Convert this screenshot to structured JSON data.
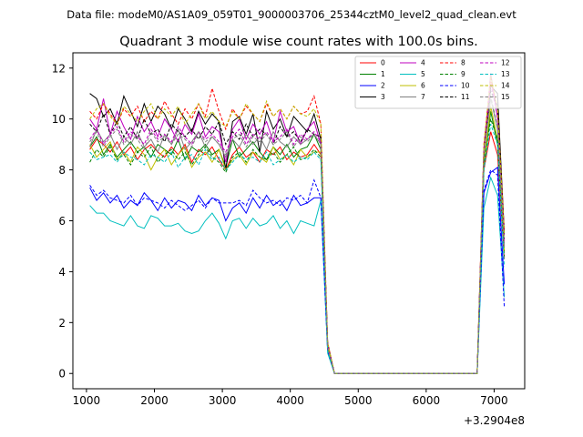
{
  "header": {
    "data_file": "Data file: modeM0/AS1A09_059T01_9000003706_25344cztM0_level2_quad_clean.evt"
  },
  "chart_data": {
    "type": "line",
    "title": "Quadrant 3 module wise count rates with 100.0s bins.",
    "xlabel": "",
    "ylabel": "",
    "x_offset_label": "+3.2904e8",
    "xlim": [
      800,
      7450
    ],
    "ylim": [
      -0.6,
      12.6
    ],
    "xticks": [
      1000,
      2000,
      3000,
      4000,
      5000,
      6000,
      7000
    ],
    "xtick_labels": [
      "1000",
      "2000",
      "3000",
      "4000",
      "5000",
      "6000",
      "7000"
    ],
    "yticks": [
      0,
      2,
      4,
      6,
      8,
      10,
      12
    ],
    "ytick_labels": [
      "0",
      "2",
      "4",
      "6",
      "8",
      "10",
      "12"
    ],
    "grid": false,
    "legend_position": "top-right",
    "x": [
      1050,
      1150,
      1250,
      1350,
      1450,
      1550,
      1650,
      1750,
      1850,
      1950,
      2050,
      2150,
      2250,
      2350,
      2450,
      2550,
      2650,
      2750,
      2850,
      2950,
      3050,
      3150,
      3250,
      3350,
      3450,
      3550,
      3650,
      3750,
      3850,
      3950,
      4050,
      4150,
      4250,
      4350,
      4450,
      4550,
      4650,
      6750,
      6850,
      6950,
      7050,
      7150
    ],
    "series": [
      {
        "name": "0",
        "color": "#ff0000",
        "dash": false,
        "values": [
          8.8,
          9.2,
          9.0,
          8.7,
          9.1,
          8.6,
          8.9,
          8.4,
          8.8,
          9.0,
          8.7,
          8.5,
          8.9,
          8.6,
          9.0,
          8.3,
          8.8,
          8.6,
          8.9,
          8.4,
          8.0,
          8.6,
          8.9,
          8.5,
          8.7,
          8.3,
          8.8,
          8.6,
          8.9,
          8.4,
          8.7,
          8.5,
          8.6,
          9.0,
          8.6,
          1.0,
          0,
          0,
          8.0,
          9.5,
          8.6,
          4.5
        ]
      },
      {
        "name": "1",
        "color": "#008000",
        "dash": false,
        "values": [
          8.9,
          9.3,
          8.6,
          9.0,
          8.5,
          8.8,
          9.1,
          8.7,
          8.9,
          8.5,
          9.0,
          8.8,
          8.6,
          9.2,
          8.4,
          8.9,
          8.7,
          9.0,
          8.6,
          8.8,
          8.1,
          9.2,
          8.5,
          8.8,
          9.1,
          8.7,
          8.4,
          8.9,
          8.6,
          9.0,
          8.5,
          8.8,
          8.9,
          9.4,
          8.8,
          1.1,
          0,
          0,
          8.1,
          10.3,
          9.0,
          5.0
        ]
      },
      {
        "name": "2",
        "color": "#0000ff",
        "dash": false,
        "values": [
          7.3,
          6.8,
          7.1,
          6.7,
          7.0,
          6.5,
          6.8,
          6.6,
          7.1,
          6.8,
          6.4,
          6.9,
          6.5,
          6.8,
          6.7,
          6.4,
          7.0,
          6.6,
          6.9,
          6.8,
          6.0,
          6.5,
          6.7,
          6.3,
          6.9,
          6.5,
          7.0,
          6.6,
          6.8,
          6.4,
          7.0,
          6.6,
          6.7,
          6.9,
          6.9,
          0.9,
          0,
          0,
          7.1,
          7.9,
          8.1,
          3.5
        ]
      },
      {
        "name": "3",
        "color": "#000000",
        "dash": false,
        "values": [
          11.0,
          10.8,
          10.1,
          10.4,
          9.8,
          10.9,
          10.3,
          9.7,
          10.6,
          9.9,
          10.5,
          10.2,
          9.6,
          10.4,
          10.0,
          9.5,
          10.3,
          9.8,
          10.2,
          9.9,
          8.0,
          9.9,
          10.1,
          9.4,
          10.2,
          8.7,
          10.3,
          9.6,
          10.0,
          9.3,
          10.1,
          9.8,
          9.5,
          10.2,
          9.2,
          1.2,
          0,
          0,
          8.5,
          11.3,
          11.0,
          5.5
        ]
      },
      {
        "name": "4",
        "color": "#bf00bf",
        "dash": false,
        "values": [
          10.0,
          9.6,
          10.8,
          9.4,
          10.3,
          9.7,
          9.2,
          10.1,
          9.5,
          9.9,
          9.3,
          10.0,
          9.6,
          9.1,
          9.8,
          9.4,
          10.2,
          9.3,
          9.7,
          9.5,
          8.3,
          9.6,
          10.0,
          9.2,
          9.8,
          9.4,
          9.9,
          9.1,
          10.3,
          9.5,
          9.7,
          9.0,
          9.6,
          9.9,
          9.0,
          1.1,
          0,
          0,
          8.8,
          11.8,
          10.0,
          5.0
        ]
      },
      {
        "name": "5",
        "color": "#00bfbf",
        "dash": false,
        "values": [
          6.6,
          6.3,
          6.3,
          6.0,
          5.9,
          5.8,
          6.2,
          5.8,
          5.7,
          6.2,
          6.1,
          5.8,
          5.8,
          5.9,
          5.6,
          5.5,
          5.6,
          6.0,
          6.3,
          5.9,
          5.3,
          6.0,
          6.1,
          5.7,
          6.1,
          5.8,
          5.9,
          6.2,
          5.7,
          6.0,
          5.5,
          6.0,
          5.9,
          5.8,
          6.8,
          0.8,
          0,
          0,
          6.5,
          7.7,
          7.0,
          3.0
        ]
      },
      {
        "name": "6",
        "color": "#bfbf00",
        "dash": false,
        "values": [
          9.0,
          8.5,
          8.8,
          9.1,
          8.4,
          8.7,
          8.3,
          8.9,
          8.6,
          8.0,
          8.5,
          8.8,
          8.2,
          8.6,
          8.9,
          8.1,
          8.5,
          8.7,
          8.3,
          8.8,
          8.0,
          8.4,
          8.6,
          8.2,
          8.7,
          8.5,
          8.3,
          8.9,
          8.4,
          8.6,
          8.2,
          8.8,
          8.5,
          8.7,
          8.7,
          1.0,
          0,
          0,
          8.2,
          10.5,
          9.2,
          4.8
        ]
      },
      {
        "name": "7",
        "color": "#808080",
        "dash": false,
        "values": [
          8.9,
          9.6,
          9.1,
          9.4,
          8.8,
          9.3,
          9.0,
          9.5,
          8.9,
          9.2,
          8.7,
          9.4,
          9.0,
          9.6,
          8.8,
          9.1,
          9.5,
          8.9,
          9.3,
          9.0,
          8.5,
          9.2,
          8.9,
          9.4,
          9.0,
          9.3,
          8.8,
          9.5,
          9.1,
          8.9,
          9.3,
          9.0,
          9.2,
          9.4,
          9.0,
          1.1,
          0,
          0,
          8.6,
          10.8,
          9.6,
          5.0
        ]
      },
      {
        "name": "8",
        "color": "#ff0000",
        "dash": true,
        "values": [
          10.3,
          10.0,
          10.6,
          10.2,
          9.8,
          10.4,
          10.1,
          10.5,
          9.9,
          10.3,
          10.0,
          10.7,
          10.2,
          9.8,
          10.4,
          10.0,
          10.6,
          10.1,
          11.2,
          10.3,
          9.6,
          10.4,
          10.0,
          10.5,
          10.2,
          9.9,
          10.6,
          10.1,
          10.4,
          10.0,
          10.5,
          10.2,
          10.3,
          10.9,
          9.8,
          1.2,
          0,
          0,
          9.0,
          11.6,
          10.4,
          5.6
        ]
      },
      {
        "name": "9",
        "color": "#008000",
        "dash": true,
        "values": [
          8.3,
          8.8,
          8.5,
          8.9,
          8.4,
          8.6,
          8.2,
          8.7,
          8.5,
          8.9,
          8.3,
          8.6,
          8.8,
          8.4,
          8.7,
          8.2,
          8.6,
          8.9,
          8.5,
          8.3,
          7.9,
          8.5,
          8.7,
          8.3,
          8.8,
          8.5,
          8.4,
          8.7,
          8.3,
          8.6,
          8.9,
          8.4,
          8.5,
          8.8,
          8.5,
          1.0,
          0,
          0,
          8.2,
          10.0,
          9.2,
          4.6
        ]
      },
      {
        "name": "10",
        "color": "#0000ff",
        "dash": true,
        "values": [
          7.4,
          7.0,
          7.2,
          6.9,
          6.8,
          6.7,
          7.0,
          6.6,
          6.9,
          6.8,
          6.7,
          6.5,
          6.8,
          6.6,
          6.4,
          6.6,
          6.8,
          6.5,
          6.9,
          6.7,
          6.7,
          6.7,
          6.8,
          6.6,
          7.2,
          6.9,
          6.7,
          6.8,
          6.6,
          6.9,
          6.8,
          7.0,
          6.7,
          7.6,
          6.9,
          0.9,
          0,
          0,
          7.2,
          8.0,
          7.8,
          2.6
        ]
      },
      {
        "name": "11",
        "color": "#000000",
        "dash": true,
        "values": [
          9.8,
          9.5,
          10.2,
          9.4,
          9.9,
          9.3,
          9.7,
          9.2,
          10.0,
          9.4,
          9.6,
          9.1,
          9.8,
          9.5,
          9.3,
          9.6,
          9.2,
          9.7,
          9.4,
          9.9,
          9.0,
          9.5,
          9.2,
          9.8,
          9.3,
          9.6,
          9.4,
          9.0,
          9.7,
          9.3,
          9.5,
          9.1,
          9.6,
          9.4,
          9.3,
          1.1,
          0,
          0,
          8.7,
          11.1,
          10.5,
          5.3
        ]
      },
      {
        "name": "12",
        "color": "#bf00bf",
        "dash": true,
        "values": [
          9.2,
          9.6,
          9.0,
          9.4,
          9.7,
          9.1,
          9.5,
          9.3,
          9.0,
          9.6,
          9.2,
          9.4,
          9.1,
          9.7,
          9.3,
          9.0,
          9.5,
          9.2,
          9.4,
          9.1,
          8.7,
          9.3,
          9.6,
          9.0,
          9.4,
          9.2,
          9.5,
          9.1,
          9.3,
          9.6,
          9.0,
          9.4,
          9.2,
          9.5,
          9.1,
          1.1,
          0,
          0,
          8.8,
          11.4,
          10.1,
          5.2
        ]
      },
      {
        "name": "13",
        "color": "#00bfbf",
        "dash": true,
        "values": [
          8.7,
          8.4,
          8.5,
          8.6,
          8.3,
          8.7,
          8.5,
          8.4,
          8.2,
          8.6,
          8.5,
          8.3,
          8.7,
          8.1,
          8.5,
          8.6,
          8.2,
          8.8,
          8.4,
          8.5,
          8.0,
          8.3,
          8.6,
          8.4,
          8.5,
          8.3,
          8.7,
          8.2,
          8.4,
          8.6,
          8.3,
          8.5,
          8.4,
          8.7,
          8.4,
          0.9,
          0,
          0,
          8.0,
          9.8,
          9.0,
          4.2
        ]
      },
      {
        "name": "14",
        "color": "#bfbf00",
        "dash": true,
        "values": [
          10.0,
          10.4,
          10.6,
          10.1,
          9.8,
          10.5,
          10.2,
          9.9,
          10.3,
          10.6,
          10.0,
          10.4,
          10.1,
          10.5,
          9.8,
          10.2,
          10.6,
          10.0,
          10.3,
          9.9,
          9.7,
          10.3,
          10.0,
          10.6,
          10.2,
          9.9,
          10.7,
          10.1,
          10.4,
          10.0,
          10.5,
          10.2,
          10.1,
          10.4,
          9.8,
          1.2,
          0,
          0,
          9.0,
          11.7,
          10.4,
          5.4
        ]
      },
      {
        "name": "15",
        "color": "#808080",
        "dash": true,
        "values": [
          9.1,
          9.5,
          8.9,
          9.3,
          9.6,
          9.0,
          9.4,
          9.2,
          8.8,
          9.5,
          9.1,
          9.3,
          9.0,
          9.4,
          9.2,
          8.9,
          9.5,
          9.1,
          9.3,
          9.0,
          8.6,
          9.2,
          9.4,
          8.9,
          9.3,
          9.1,
          9.4,
          9.0,
          9.2,
          9.5,
          8.9,
          9.3,
          9.1,
          9.4,
          9.0,
          1.0,
          0,
          0,
          8.6,
          10.9,
          9.7,
          4.9
        ]
      }
    ]
  }
}
